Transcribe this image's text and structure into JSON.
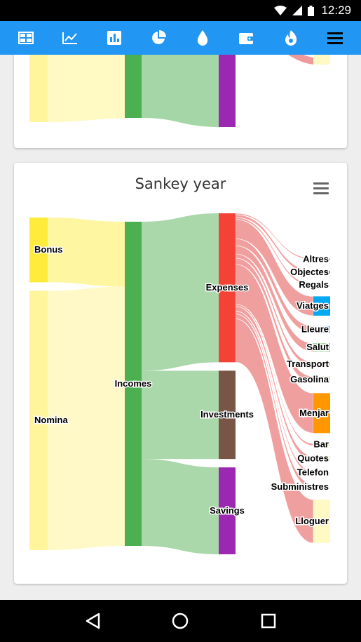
{
  "status_bar": {
    "time": "12:29",
    "icons": [
      "wifi-icon",
      "signal-icon",
      "battery-icon"
    ]
  },
  "toolbar": {
    "color": "#2196f3",
    "items": [
      "dashboard-icon",
      "trend-icon",
      "bar-chart-icon",
      "pie-chart-icon",
      "drop-icon",
      "wallet-icon",
      "flame-icon",
      "menu-icon"
    ]
  },
  "card2": {
    "title": "Sankey year",
    "menu_icon": "hamburger-icon"
  },
  "chart_data": {
    "type": "sankey",
    "title": "Sankey year",
    "nodes": [
      {
        "id": "Bonus",
        "color": "#ffeb3b"
      },
      {
        "id": "Nomina",
        "color": "#fff59d"
      },
      {
        "id": "Incomes",
        "color": "#4caf50"
      },
      {
        "id": "Expenses",
        "color": "#f44336"
      },
      {
        "id": "Investments",
        "color": "#795548"
      },
      {
        "id": "Savings",
        "color": "#9c27b0"
      },
      {
        "id": "Altres",
        "color": "#9e9e9e"
      },
      {
        "id": "Objectes",
        "color": "#3f51b5"
      },
      {
        "id": "Regals",
        "color": "#e0e0e0"
      },
      {
        "id": "Viatges",
        "color": "#03a9f4"
      },
      {
        "id": "Lleure",
        "color": "#90caf9"
      },
      {
        "id": "Salut",
        "color": "#81c784"
      },
      {
        "id": "Transport",
        "color": "#cddc39"
      },
      {
        "id": "Gasolina",
        "color": "#c5e1a5"
      },
      {
        "id": "Menjar",
        "color": "#ff9800"
      },
      {
        "id": "Bar",
        "color": "#ffe082"
      },
      {
        "id": "Quotes",
        "color": "#ffee58"
      },
      {
        "id": "Telefon",
        "color": "#fff9c4"
      },
      {
        "id": "Subministres",
        "color": "#fffde7"
      },
      {
        "id": "Lloguer",
        "color": "#fff9c4"
      }
    ],
    "links": [
      {
        "from": "Bonus",
        "to": "Incomes",
        "value": 94
      },
      {
        "from": "Nomina",
        "to": "Incomes",
        "value": 376
      },
      {
        "from": "Incomes",
        "to": "Expenses",
        "value": 216
      },
      {
        "from": "Incomes",
        "to": "Investments",
        "value": 128
      },
      {
        "from": "Incomes",
        "to": "Savings",
        "value": 126
      },
      {
        "from": "Expenses",
        "to": "Altres",
        "value": 2
      },
      {
        "from": "Expenses",
        "to": "Objectes",
        "value": 4
      },
      {
        "from": "Expenses",
        "to": "Regals",
        "value": 3
      },
      {
        "from": "Expenses",
        "to": "Viatges",
        "value": 28
      },
      {
        "from": "Expenses",
        "to": "Lleure",
        "value": 10
      },
      {
        "from": "Expenses",
        "to": "Salut",
        "value": 12
      },
      {
        "from": "Expenses",
        "to": "Transport",
        "value": 6
      },
      {
        "from": "Expenses",
        "to": "Gasolina",
        "value": 9
      },
      {
        "from": "Expenses",
        "to": "Menjar",
        "value": 58
      },
      {
        "from": "Expenses",
        "to": "Bar",
        "value": 3
      },
      {
        "from": "Expenses",
        "to": "Quotes",
        "value": 7
      },
      {
        "from": "Expenses",
        "to": "Telefon",
        "value": 4
      },
      {
        "from": "Expenses",
        "to": "Subministres",
        "value": 7
      },
      {
        "from": "Expenses",
        "to": "Lloguer",
        "value": 63
      }
    ]
  },
  "navbar": {
    "items": [
      "back-icon",
      "home-icon",
      "recents-icon"
    ]
  }
}
